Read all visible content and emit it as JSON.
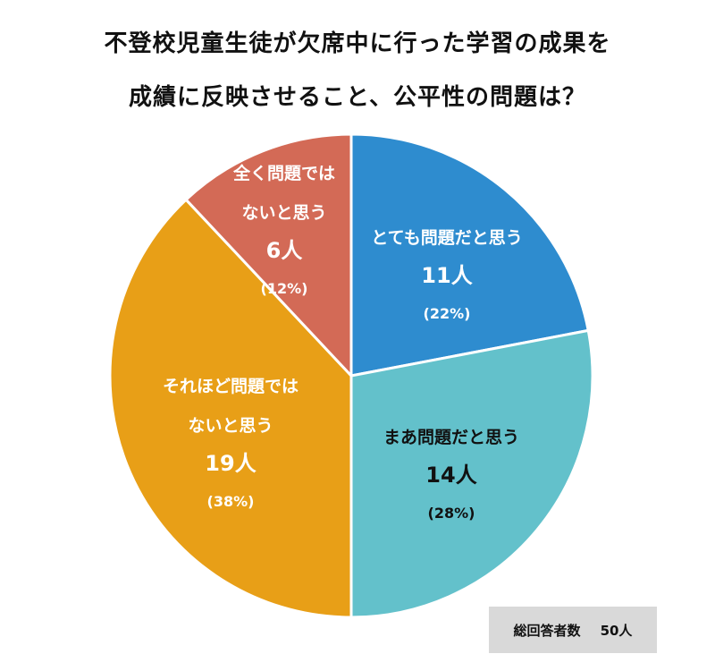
{
  "title": {
    "line1": "不登校児童生徒が欠席中に行った学習の成果を",
    "line2": "成績に反映させること、公平性の問題は？"
  },
  "total": {
    "label": "総回答者数",
    "value": "50人"
  },
  "chart_data": {
    "type": "pie",
    "total_respondents": 50,
    "slices": [
      {
        "label": [
          "とても問題だと思う"
        ],
        "count": 11,
        "count_label": "11人",
        "percent": 22,
        "percent_label": "(22%)",
        "color": "#2e8ccf",
        "text_color": "#ffffff"
      },
      {
        "label": [
          "まあ問題だと思う"
        ],
        "count": 14,
        "count_label": "14人",
        "percent": 28,
        "percent_label": "(28%)",
        "color": "#63c1cb",
        "text_color": "#111111"
      },
      {
        "label": [
          "それほど問題では",
          "ないと思う"
        ],
        "count": 19,
        "count_label": "19人",
        "percent": 38,
        "percent_label": "(38%)",
        "color": "#e89f17",
        "text_color": "#ffffff"
      },
      {
        "label": [
          "全く問題では",
          "ないと思う"
        ],
        "count": 6,
        "count_label": "6人",
        "percent": 12,
        "percent_label": "(12%)",
        "color": "#d36a56",
        "text_color": "#ffffff"
      }
    ]
  }
}
